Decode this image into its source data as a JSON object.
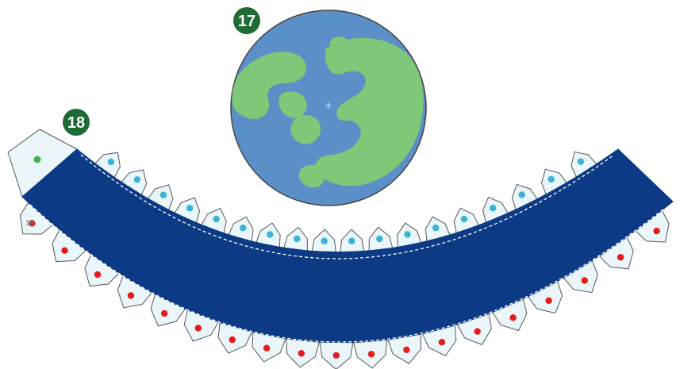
{
  "steps": {
    "globe_step": "17",
    "band_step": "18"
  },
  "band": {
    "end_label": "18",
    "inner_tab_count": 18,
    "outer_tab_count": 19
  },
  "colors": {
    "badge": "#1f6b35",
    "ocean": "#5b8fc7",
    "land": "#7ec877",
    "globe_outline": "#444444",
    "band_fill": "#0d3a84",
    "band_dash": "#ffffff",
    "tab_fill": "#eaf6fa",
    "tab_outline": "#555555",
    "inner_dot": "#3bb3d6",
    "outer_dot": "#e51c1c",
    "glue_dot": "#4caf50"
  },
  "icons": {
    "globe": "north-pole-globe-icon",
    "band": "curved-paper-band"
  }
}
